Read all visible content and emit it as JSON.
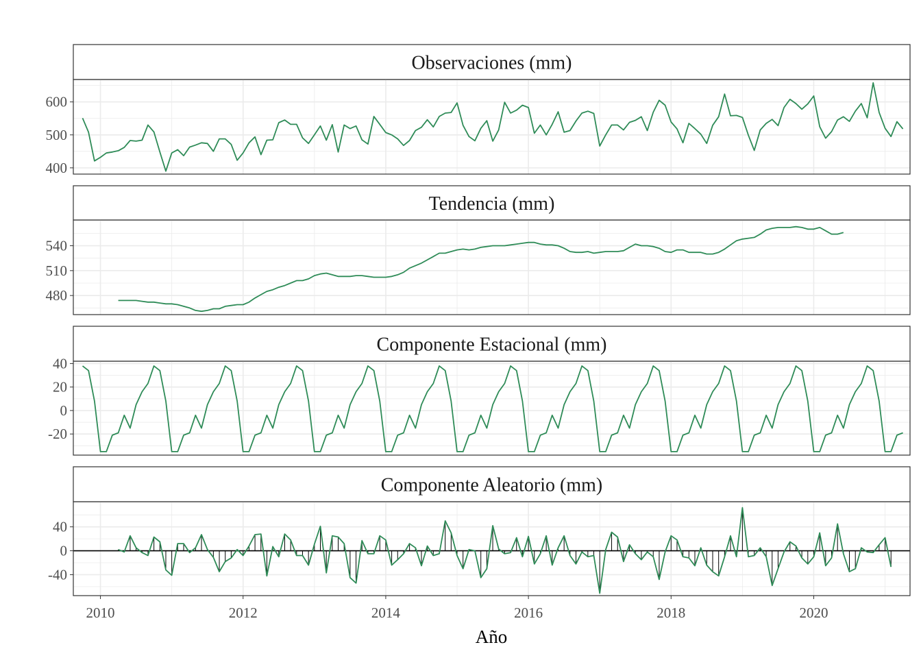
{
  "colors": {
    "line": "#2e8b57",
    "bar": "#000000",
    "panel_border": "#333333",
    "strip_fill": "#ffffff",
    "grid": "#ebebeb",
    "zero_line": "#000000"
  },
  "chart_data": {
    "type": "line",
    "xlabel": "Año",
    "x_range": [
      2009.62,
      2021.35
    ],
    "x_ticks": [
      {
        "value": 2010,
        "label": "2010"
      },
      {
        "value": 2012,
        "label": "2012"
      },
      {
        "value": 2014,
        "label": "2014"
      },
      {
        "value": 2016,
        "label": "2016"
      },
      {
        "value": 2018,
        "label": "2018"
      },
      {
        "value": 2020,
        "label": "2020"
      }
    ],
    "start_year": 2009.75,
    "panels": [
      {
        "key": "obs",
        "title": "Observaciones (mm)",
        "ylim": [
          381,
          668
        ],
        "yticks": [
          {
            "value": 400,
            "label": "400"
          },
          {
            "value": 500,
            "label": "500"
          },
          {
            "value": 600,
            "label": "600"
          }
        ],
        "values": [
          551,
          508,
          421,
          432,
          445,
          448,
          452,
          462,
          483,
          481,
          484,
          530,
          509,
          448,
          390,
          445,
          455,
          437,
          463,
          469,
          476,
          474,
          450,
          488,
          488,
          471,
          423,
          445,
          476,
          494,
          440,
          484,
          485,
          537,
          545,
          532,
          532,
          491,
          474,
          500,
          527,
          484,
          531,
          448,
          530,
          519,
          527,
          485,
          472,
          556,
          532,
          507,
          500,
          488,
          468,
          483,
          513,
          523,
          546,
          524,
          556,
          566,
          568,
          597,
          529,
          495,
          482,
          520,
          543,
          481,
          515,
          599,
          566,
          575,
          590,
          583,
          505,
          530,
          500,
          532,
          570,
          508,
          513,
          542,
          566,
          572,
          565,
          466,
          500,
          530,
          530,
          515,
          538,
          544,
          555,
          513,
          569,
          605,
          590,
          539,
          518,
          476,
          535,
          519,
          502,
          474,
          529,
          555,
          624,
          558,
          559,
          553,
          499,
          453,
          515,
          535,
          547,
          528,
          583,
          608,
          595,
          578,
          594,
          618,
          525,
          490,
          510,
          545,
          555,
          541,
          572,
          595,
          552,
          658,
          568,
          520,
          495,
          540,
          518
        ],
        "bars": false
      },
      {
        "key": "trend",
        "title": "Tendencia (mm)",
        "ylim": [
          457,
          571
        ],
        "yticks": [
          {
            "value": 480,
            "label": "480"
          },
          {
            "value": 510,
            "label": "510"
          },
          {
            "value": 540,
            "label": "540"
          }
        ],
        "start_offset": 6,
        "values": [
          474,
          474,
          474,
          474,
          473,
          472,
          472,
          471,
          470,
          470,
          469,
          467,
          465,
          462,
          461,
          462,
          464,
          464,
          467,
          468,
          469,
          469,
          472,
          477,
          481,
          485,
          487,
          490,
          492,
          495,
          498,
          498,
          500,
          504,
          506,
          507,
          505,
          503,
          503,
          503,
          504,
          504,
          503,
          502,
          502,
          502,
          503,
          505,
          508,
          513,
          516,
          519,
          523,
          527,
          531,
          531,
          533,
          535,
          536,
          535,
          536,
          538,
          539,
          540,
          540,
          540,
          541,
          542,
          543,
          544,
          544,
          542,
          541,
          541,
          540,
          537,
          533,
          532,
          532,
          533,
          531,
          532,
          533,
          533,
          533,
          534,
          538,
          542,
          540,
          540,
          539,
          537,
          533,
          532,
          535,
          535,
          532,
          532,
          532,
          530,
          530,
          532,
          536,
          541,
          546,
          548,
          549,
          550,
          554,
          559,
          561,
          562,
          562,
          562,
          563,
          562,
          560,
          560,
          562,
          558,
          554,
          554,
          556
        ],
        "bars": false
      },
      {
        "key": "seasonal",
        "title": "Componente Estacional (mm)",
        "ylim": [
          -38,
          42
        ],
        "yticks": [
          {
            "value": -20,
            "label": "-20"
          },
          {
            "value": 0,
            "label": "0"
          },
          {
            "value": 20,
            "label": "20"
          },
          {
            "value": 40,
            "label": "40"
          }
        ],
        "pattern": [
          38,
          34,
          8,
          -35,
          -35,
          -21,
          -19,
          -4,
          -15,
          5,
          16,
          23
        ],
        "count": 139,
        "bars": false
      },
      {
        "key": "random",
        "title": "Componente Aleatorio (mm)",
        "ylim": [
          -75,
          82
        ],
        "yticks": [
          {
            "value": -40,
            "label": "-40"
          },
          {
            "value": 0,
            "label": "0"
          },
          {
            "value": 40,
            "label": "40"
          }
        ],
        "start_offset": 6,
        "values": [
          2,
          -2,
          25,
          5,
          -3,
          -8,
          23,
          15,
          -32,
          -41,
          12,
          12,
          -3,
          5,
          27,
          2,
          -11,
          -35,
          -18,
          -12,
          2,
          -8,
          8,
          27,
          28,
          -42,
          7,
          -10,
          28,
          18,
          -8,
          -8,
          -24,
          11,
          41,
          -37,
          25,
          23,
          12,
          -45,
          -54,
          17,
          -5,
          -5,
          25,
          18,
          -24,
          -15,
          -5,
          12,
          5,
          -25,
          8,
          -8,
          -5,
          50,
          30,
          -8,
          -30,
          2,
          0,
          -45,
          -30,
          42,
          3,
          -5,
          -3,
          22,
          -10,
          24,
          -22,
          -5,
          25,
          -24,
          5,
          25,
          -8,
          -22,
          -2,
          -10,
          -8,
          -71,
          2,
          31,
          23,
          -18,
          10,
          -5,
          -15,
          -2,
          -10,
          -48,
          -2,
          25,
          18,
          -10,
          -12,
          -25,
          5,
          -24,
          -35,
          -42,
          -10,
          25,
          -10,
          72,
          -10,
          -8,
          5,
          -10,
          -58,
          -30,
          -2,
          15,
          8,
          -12,
          -22,
          -10,
          30,
          -25,
          -12,
          45,
          -5,
          -35,
          -30,
          5,
          -2,
          -3,
          10,
          22,
          -27
        ],
        "bars": true
      }
    ]
  }
}
